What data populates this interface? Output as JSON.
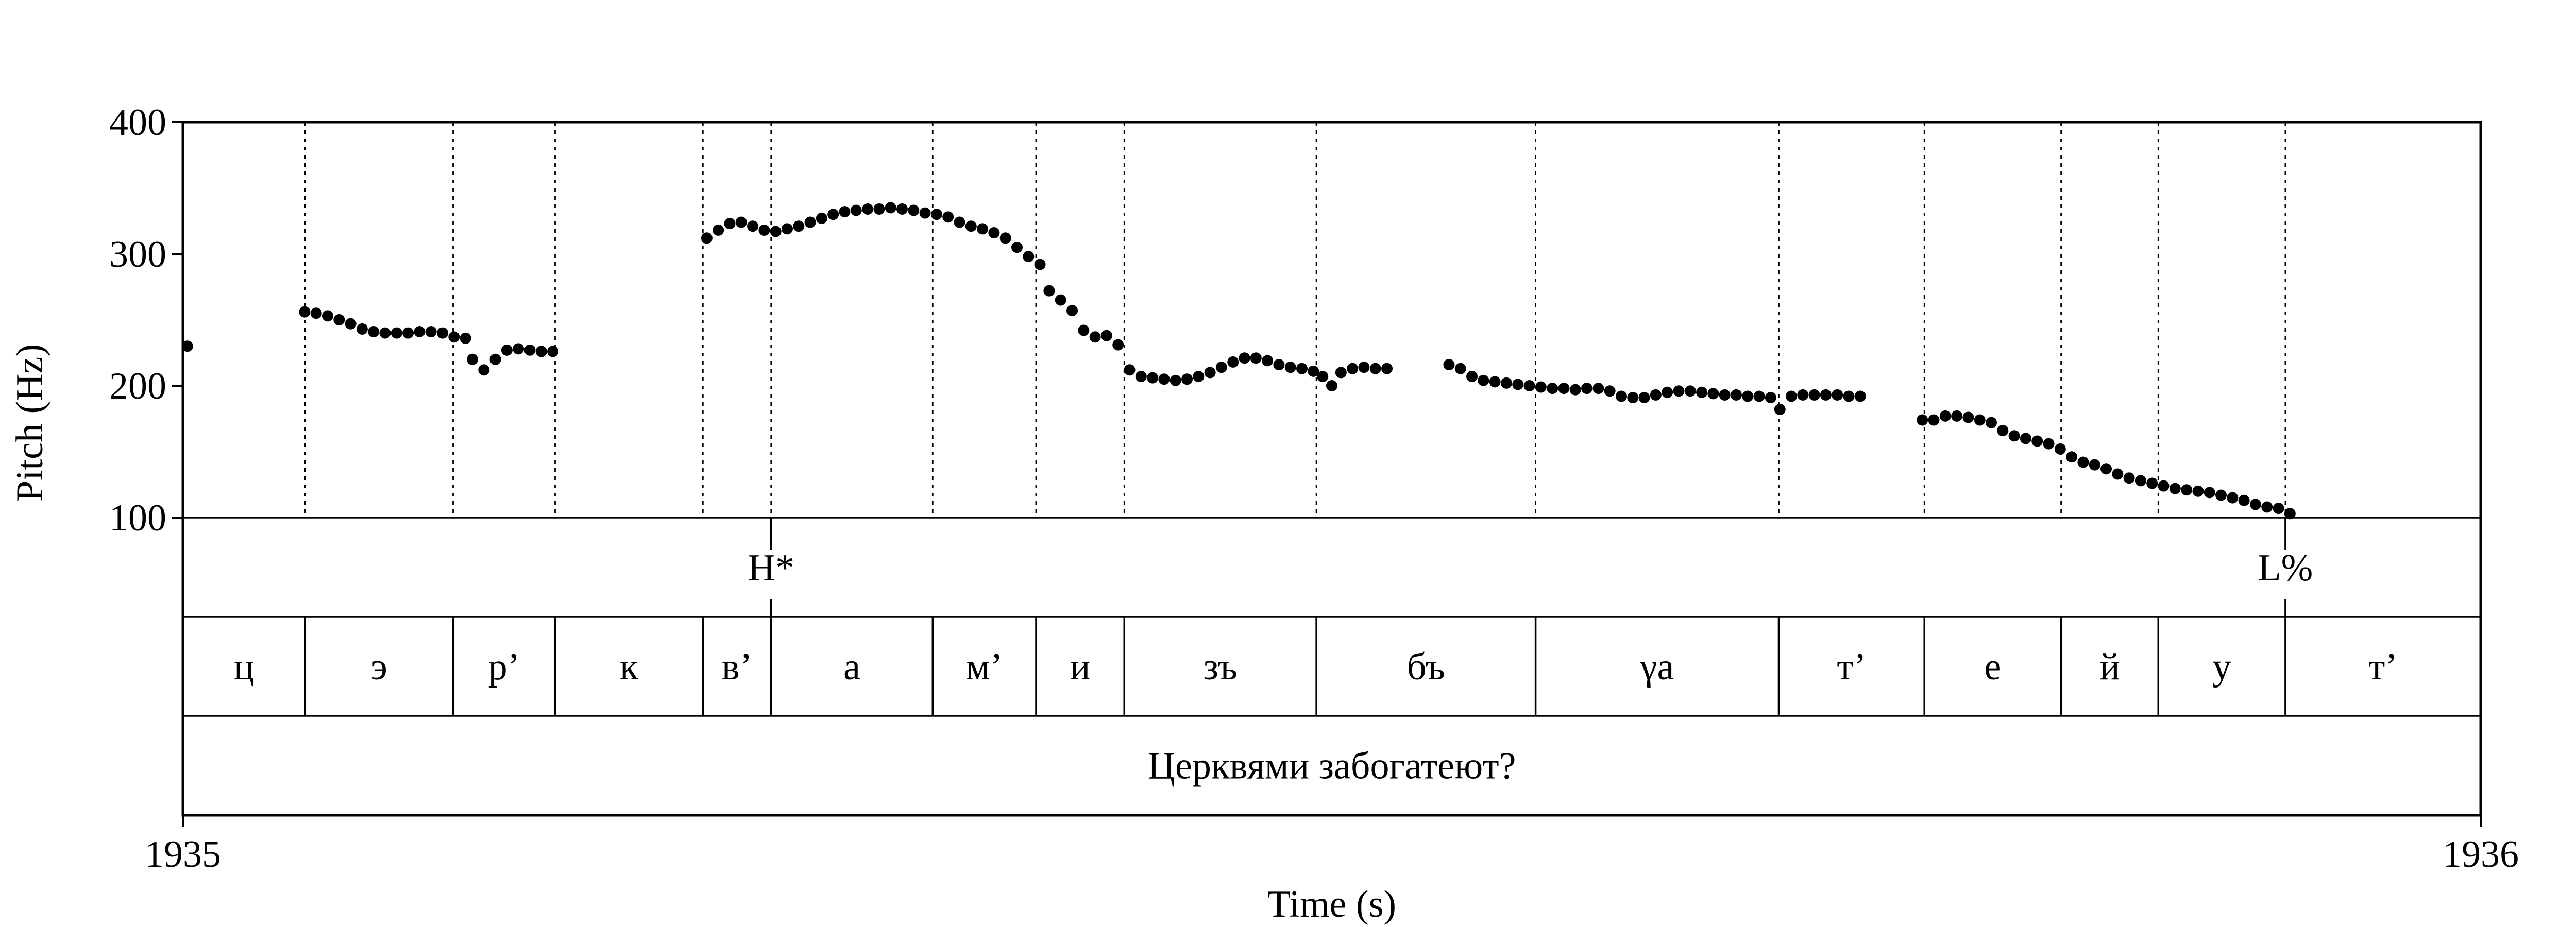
{
  "chart_data": {
    "type": "scatter",
    "xlabel": "Time (s)",
    "ylabel": "Pitch (Hz)",
    "xlim": [
      1935,
      1936
    ],
    "ylim": [
      100,
      400
    ],
    "x_tick_labels": [
      "1935",
      "1936"
    ],
    "y_ticks": [
      100,
      200,
      300,
      400
    ],
    "y_tick_labels": [
      "100",
      "200",
      "300",
      "400"
    ],
    "grid": false,
    "series": [
      {
        "values": [
          [
            1935.002,
            230
          ],
          [
            1935.053,
            256
          ],
          [
            1935.058,
            255
          ],
          [
            1935.063,
            253
          ],
          [
            1935.068,
            250
          ],
          [
            1935.073,
            247
          ],
          [
            1935.078,
            243
          ],
          [
            1935.083,
            241
          ],
          [
            1935.088,
            240
          ],
          [
            1935.093,
            240
          ],
          [
            1935.098,
            240
          ],
          [
            1935.103,
            241
          ],
          [
            1935.108,
            241
          ],
          [
            1935.113,
            240
          ],
          [
            1935.118,
            237
          ],
          [
            1935.123,
            236
          ],
          [
            1935.126,
            220
          ],
          [
            1935.131,
            212
          ],
          [
            1935.136,
            220
          ],
          [
            1935.141,
            227
          ],
          [
            1935.146,
            228
          ],
          [
            1935.151,
            227
          ],
          [
            1935.156,
            226
          ],
          [
            1935.161,
            226
          ],
          [
            1935.228,
            312
          ],
          [
            1935.233,
            318
          ],
          [
            1935.238,
            323
          ],
          [
            1935.243,
            324
          ],
          [
            1935.248,
            321
          ],
          [
            1935.253,
            318
          ],
          [
            1935.258,
            317
          ],
          [
            1935.263,
            319
          ],
          [
            1935.268,
            321
          ],
          [
            1935.273,
            324
          ],
          [
            1935.278,
            327
          ],
          [
            1935.283,
            330
          ],
          [
            1935.288,
            332
          ],
          [
            1935.293,
            333
          ],
          [
            1935.298,
            334
          ],
          [
            1935.303,
            334
          ],
          [
            1935.308,
            335
          ],
          [
            1935.313,
            334
          ],
          [
            1935.318,
            333
          ],
          [
            1935.323,
            331
          ],
          [
            1935.328,
            330
          ],
          [
            1935.333,
            328
          ],
          [
            1935.338,
            324
          ],
          [
            1935.343,
            321
          ],
          [
            1935.348,
            319
          ],
          [
            1935.353,
            316
          ],
          [
            1935.358,
            312
          ],
          [
            1935.363,
            305
          ],
          [
            1935.368,
            298
          ],
          [
            1935.373,
            292
          ],
          [
            1935.377,
            272
          ],
          [
            1935.382,
            265
          ],
          [
            1935.387,
            257
          ],
          [
            1935.392,
            242
          ],
          [
            1935.397,
            237
          ],
          [
            1935.402,
            238
          ],
          [
            1935.407,
            231
          ],
          [
            1935.412,
            212
          ],
          [
            1935.417,
            207
          ],
          [
            1935.422,
            206
          ],
          [
            1935.427,
            205
          ],
          [
            1935.432,
            204
          ],
          [
            1935.437,
            205
          ],
          [
            1935.442,
            207
          ],
          [
            1935.447,
            210
          ],
          [
            1935.452,
            214
          ],
          [
            1935.457,
            218
          ],
          [
            1935.462,
            221
          ],
          [
            1935.467,
            221
          ],
          [
            1935.472,
            219
          ],
          [
            1935.477,
            216
          ],
          [
            1935.482,
            214
          ],
          [
            1935.487,
            213
          ],
          [
            1935.492,
            211
          ],
          [
            1935.496,
            207
          ],
          [
            1935.5,
            200
          ],
          [
            1935.504,
            210
          ],
          [
            1935.509,
            213
          ],
          [
            1935.514,
            214
          ],
          [
            1935.519,
            213
          ],
          [
            1935.524,
            213
          ],
          [
            1935.551,
            216
          ],
          [
            1935.556,
            213
          ],
          [
            1935.561,
            207
          ],
          [
            1935.566,
            204
          ],
          [
            1935.571,
            203
          ],
          [
            1935.576,
            202
          ],
          [
            1935.581,
            201
          ],
          [
            1935.586,
            200
          ],
          [
            1935.591,
            199
          ],
          [
            1935.596,
            198
          ],
          [
            1935.601,
            198
          ],
          [
            1935.606,
            197
          ],
          [
            1935.611,
            198
          ],
          [
            1935.616,
            198
          ],
          [
            1935.621,
            196
          ],
          [
            1935.626,
            192
          ],
          [
            1935.631,
            191
          ],
          [
            1935.636,
            191
          ],
          [
            1935.641,
            193
          ],
          [
            1935.646,
            195
          ],
          [
            1935.651,
            196
          ],
          [
            1935.656,
            196
          ],
          [
            1935.661,
            195
          ],
          [
            1935.666,
            194
          ],
          [
            1935.671,
            193
          ],
          [
            1935.676,
            193
          ],
          [
            1935.681,
            192
          ],
          [
            1935.686,
            192
          ],
          [
            1935.691,
            191
          ],
          [
            1935.695,
            182
          ],
          [
            1935.7,
            192
          ],
          [
            1935.705,
            193
          ],
          [
            1935.71,
            193
          ],
          [
            1935.715,
            193
          ],
          [
            1935.72,
            193
          ],
          [
            1935.725,
            192
          ],
          [
            1935.73,
            192
          ],
          [
            1935.757,
            174
          ],
          [
            1935.762,
            174
          ],
          [
            1935.767,
            177
          ],
          [
            1935.772,
            177
          ],
          [
            1935.777,
            176
          ],
          [
            1935.782,
            174
          ],
          [
            1935.787,
            172
          ],
          [
            1935.792,
            166
          ],
          [
            1935.797,
            162
          ],
          [
            1935.802,
            160
          ],
          [
            1935.807,
            158
          ],
          [
            1935.812,
            156
          ],
          [
            1935.817,
            152
          ],
          [
            1935.822,
            146
          ],
          [
            1935.827,
            142
          ],
          [
            1935.832,
            140
          ],
          [
            1935.837,
            137
          ],
          [
            1935.842,
            133
          ],
          [
            1935.847,
            130
          ],
          [
            1935.852,
            128
          ],
          [
            1935.857,
            126
          ],
          [
            1935.862,
            124
          ],
          [
            1935.867,
            122
          ],
          [
            1935.872,
            121
          ],
          [
            1935.877,
            120
          ],
          [
            1935.882,
            119
          ],
          [
            1935.887,
            117
          ],
          [
            1935.892,
            115
          ],
          [
            1935.897,
            113
          ],
          [
            1935.902,
            110
          ],
          [
            1935.907,
            108
          ],
          [
            1935.912,
            107
          ],
          [
            1935.917,
            103
          ]
        ]
      }
    ],
    "tones": [
      {
        "label": "H*",
        "t": 1935.256
      },
      {
        "label": "L%",
        "t": 1935.915
      }
    ],
    "segments": [
      {
        "label": "ц",
        "start": 1935.0,
        "end": 1935.0532
      },
      {
        "label": "э",
        "start": 1935.0532,
        "end": 1935.1176
      },
      {
        "label": "р’",
        "start": 1935.1176,
        "end": 1935.162
      },
      {
        "label": "к",
        "start": 1935.162,
        "end": 1935.2263
      },
      {
        "label": "в’",
        "start": 1935.2263,
        "end": 1935.256
      },
      {
        "label": "а",
        "start": 1935.256,
        "end": 1935.3263
      },
      {
        "label": "м’",
        "start": 1935.3263,
        "end": 1935.3713
      },
      {
        "label": "и",
        "start": 1935.3713,
        "end": 1935.4097
      },
      {
        "label": "зъ",
        "start": 1935.4097,
        "end": 1935.4933
      },
      {
        "label": "бъ",
        "start": 1935.4933,
        "end": 1935.5887
      },
      {
        "label": "γа",
        "start": 1935.5887,
        "end": 1935.6945
      },
      {
        "label": "т’",
        "start": 1935.6945,
        "end": 1935.7579
      },
      {
        "label": "е",
        "start": 1935.7579,
        "end": 1935.8174
      },
      {
        "label": "й",
        "start": 1935.8174,
        "end": 1935.8597
      },
      {
        "label": "у",
        "start": 1935.8597,
        "end": 1935.915
      },
      {
        "label": "т’",
        "start": 1935.915,
        "end": 1936.0
      }
    ],
    "utterance": "Церквями забогатеют?"
  }
}
